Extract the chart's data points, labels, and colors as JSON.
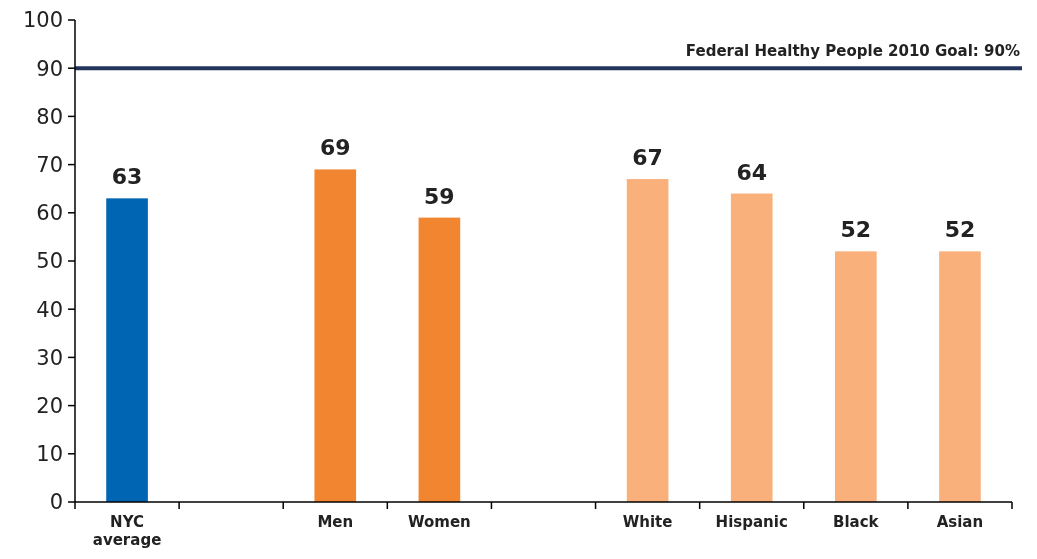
{
  "chart_data": {
    "type": "bar",
    "categories": [
      "NYC average",
      null,
      "Men",
      "Women",
      null,
      "White",
      "Hispanic",
      "Black",
      "Asian"
    ],
    "values": [
      63,
      null,
      69,
      59,
      null,
      67,
      64,
      52,
      52
    ],
    "colors": [
      "#0066b3",
      null,
      "#f28630",
      "#f28630",
      null,
      "#f9b07a",
      "#f9b07a",
      "#f9b07a",
      "#f9b07a"
    ],
    "ylim": [
      0,
      100
    ],
    "yticks": [
      0,
      10,
      20,
      30,
      40,
      50,
      60,
      70,
      80,
      90,
      100
    ],
    "grid": false,
    "data_labels": true,
    "ref_lines": [
      {
        "axis": "y",
        "value": 90,
        "label": "Federal Healthy People 2010 Goal: 90%",
        "color": "#23345c"
      }
    ]
  }
}
